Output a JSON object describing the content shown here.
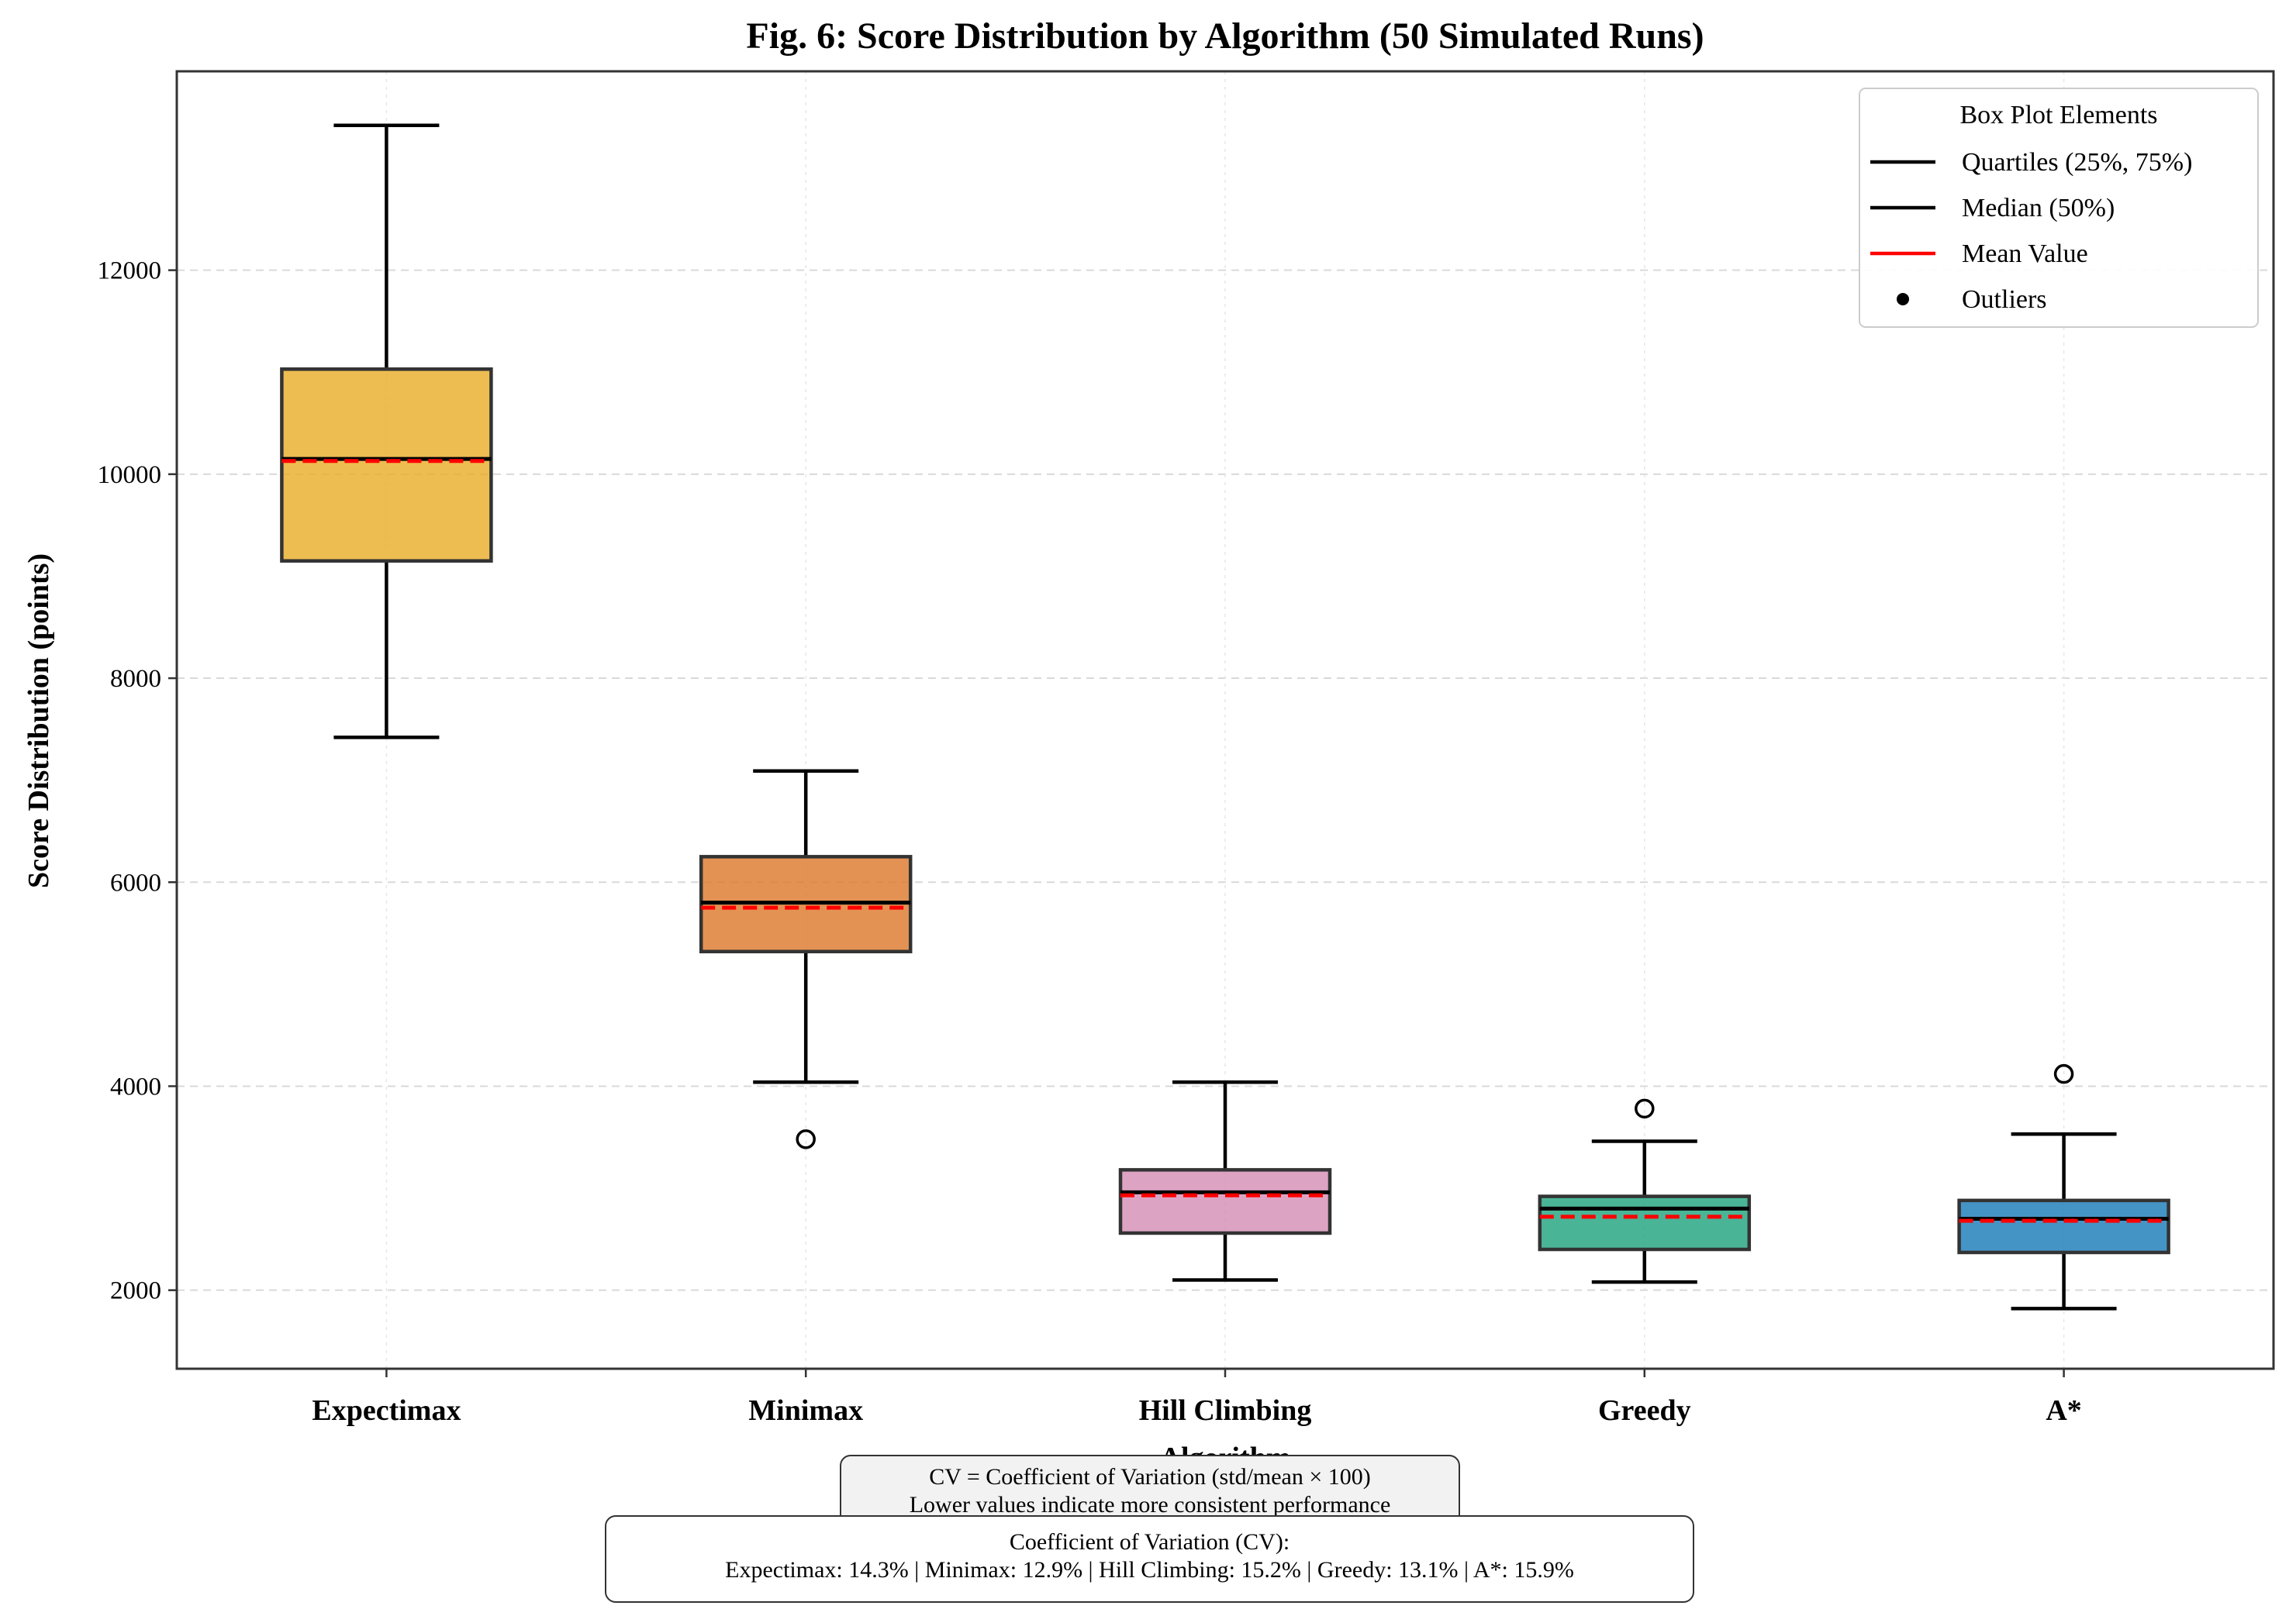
{
  "chart_data": {
    "type": "box",
    "title": "Fig. 6: Score Distribution by Algorithm (50 Simulated Runs)",
    "xlabel": "Algorithm",
    "ylabel": "Score Distribution (points)",
    "ylim": [
      1230,
      13950
    ],
    "yticks": [
      2000,
      4000,
      6000,
      8000,
      10000,
      12000
    ],
    "grid": true,
    "legend": {
      "title": "Box Plot Elements",
      "placement": "top-right",
      "entries": [
        {
          "label": "Quartiles (25%, 75%)",
          "kind": "line",
          "color": "#000000"
        },
        {
          "label": "Median (50%)",
          "kind": "line",
          "color": "#000000"
        },
        {
          "label": "Mean Value",
          "kind": "line",
          "color": "#ff0000"
        },
        {
          "label": "Outliers",
          "kind": "dot",
          "color": "#000000"
        }
      ]
    },
    "categories": [
      "Expectimax",
      "Minimax",
      "Hill Climbing",
      "Greedy",
      "A*"
    ],
    "boxes": [
      {
        "name": "Expectimax",
        "color": "#E9AE2B",
        "whisker_low": 7420,
        "q1": 9150,
        "median": 10150,
        "mean": 10130,
        "q3": 11030,
        "whisker_high": 13420,
        "outliers": []
      },
      {
        "name": "Minimax",
        "color": "#DD7A2E",
        "whisker_low": 4040,
        "q1": 5320,
        "median": 5800,
        "mean": 5750,
        "q3": 6250,
        "whisker_high": 7090,
        "outliers": [
          3480
        ]
      },
      {
        "name": "Hill Climbing",
        "color": "#D68FB6",
        "whisker_low": 2100,
        "q1": 2560,
        "median": 2960,
        "mean": 2930,
        "q3": 3180,
        "whisker_high": 4040,
        "outliers": []
      },
      {
        "name": "Greedy",
        "color": "#22A57F",
        "whisker_low": 2080,
        "q1": 2400,
        "median": 2800,
        "mean": 2720,
        "q3": 2920,
        "whisker_high": 3460,
        "outliers": [
          3780
        ]
      },
      {
        "name": "A*",
        "color": "#1C7DBA",
        "whisker_low": 1820,
        "q1": 2370,
        "median": 2700,
        "mean": 2680,
        "q3": 2880,
        "whisker_high": 3530,
        "outliers": [
          4120
        ]
      }
    ]
  },
  "notes": {
    "definition_line1": "CV = Coefficient of Variation (std/mean × 100)",
    "definition_line2": "Lower values indicate more consistent performance",
    "cv_title": "Coefficient of Variation (CV):",
    "cv_values": "Expectimax: 14.3% | Minimax: 12.9% | Hill Climbing: 15.2% | Greedy: 13.1% | A*: 15.9%"
  }
}
